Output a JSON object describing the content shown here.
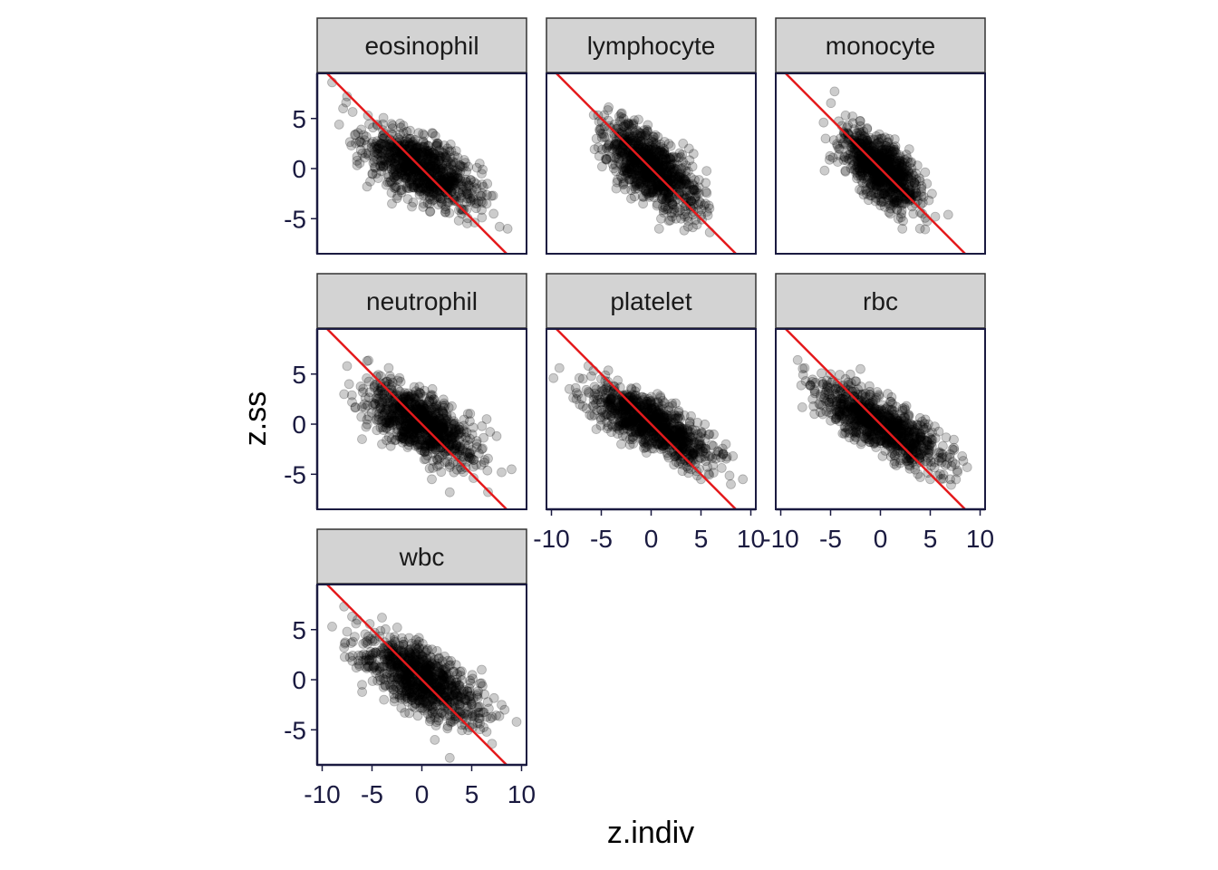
{
  "chart_data": {
    "type": "scatter",
    "layout": "facet_wrap",
    "xlabel": "z.indiv",
    "ylabel": "z.ss",
    "xlim": [
      -10.5,
      10.5
    ],
    "ylim": [
      -8.5,
      9.5
    ],
    "xticks": [
      -10,
      -5,
      0,
      5,
      10
    ],
    "xtick_labels": [
      "-10",
      "-5",
      "0",
      "5",
      "10"
    ],
    "yticks": [
      -5,
      0,
      5
    ],
    "ytick_labels": [
      "-5",
      "0",
      "5"
    ],
    "grid": false,
    "reference_line": {
      "intercept": 0,
      "slope": -1,
      "color": "#e41a1c"
    },
    "point_color": "#000000",
    "point_alpha": 0.2,
    "panels": [
      {
        "label": "eosinophil",
        "cluster": {
          "x_mean": 0,
          "y_mean": 0,
          "x_sd": 2.8,
          "y_sd": 2.0,
          "corr": -0.62
        },
        "points": [
          [
            -9.0,
            8.6
          ],
          [
            -7.5,
            7.2
          ],
          [
            -7.6,
            6.6
          ],
          [
            -7.9,
            6.0
          ],
          [
            -8.3,
            4.4
          ],
          [
            -6.5,
            1.2
          ],
          [
            -5.5,
            -1.8
          ],
          [
            -3.0,
            -3.5
          ],
          [
            -1.0,
            -3.8
          ],
          [
            2.0,
            -3.5
          ],
          [
            4.0,
            -4.5
          ],
          [
            5.0,
            -2.5
          ],
          [
            5.8,
            0.5
          ],
          [
            6.5,
            -3.5
          ],
          [
            7.2,
            -4.5
          ],
          [
            7.8,
            -5.8
          ],
          [
            8.6,
            -6.0
          ],
          [
            6.0,
            -0.5
          ]
        ]
      },
      {
        "label": "lymphocyte",
        "cluster": {
          "x_mean": 0,
          "y_mean": 0,
          "x_sd": 2.3,
          "y_sd": 2.2,
          "corr": -0.65
        },
        "points": [
          [
            -4.3,
            4.8
          ],
          [
            -3.2,
            5.2
          ],
          [
            -5.0,
            3.5
          ],
          [
            -3.5,
            -2.0
          ],
          [
            -2.0,
            -3.0
          ],
          [
            1.0,
            -5.0
          ],
          [
            0.8,
            -6.0
          ],
          [
            2.5,
            -5.0
          ],
          [
            4.0,
            -4.0
          ],
          [
            4.6,
            -5.6
          ],
          [
            3.0,
            -5.0
          ],
          [
            3.8,
            2.0
          ],
          [
            3.2,
            2.5
          ],
          [
            -4.5,
            2.0
          ]
        ]
      },
      {
        "label": "monocyte",
        "cluster": {
          "x_mean": 0,
          "y_mean": 0,
          "x_sd": 2.0,
          "y_sd": 2.1,
          "corr": -0.65
        },
        "points": [
          [
            -4.6,
            7.7
          ],
          [
            -5.7,
            4.6
          ],
          [
            -5.5,
            3.0
          ],
          [
            -5.6,
            -0.2
          ],
          [
            -3.5,
            5.3
          ],
          [
            -2.8,
            5.2
          ],
          [
            1.0,
            -4.5
          ],
          [
            1.8,
            -5.0
          ],
          [
            2.2,
            -6.0
          ],
          [
            3.3,
            -4.5
          ],
          [
            4.2,
            -4.5
          ],
          [
            5.5,
            -4.8
          ],
          [
            6.8,
            -4.6
          ],
          [
            3.5,
            -3.5
          ]
        ]
      },
      {
        "label": "neutrophil",
        "cluster": {
          "x_mean": 0,
          "y_mean": 0,
          "x_sd": 2.7,
          "y_sd": 2.0,
          "corr": -0.6
        },
        "points": [
          [
            -7.5,
            5.8
          ],
          [
            -5.5,
            6.3
          ],
          [
            -7.0,
            2.2
          ],
          [
            -7.8,
            3.0
          ],
          [
            -7.3,
            4.0
          ],
          [
            -6.0,
            -1.5
          ],
          [
            -4.0,
            -2.0
          ],
          [
            1.0,
            -5.5
          ],
          [
            2.8,
            -6.8
          ],
          [
            4.0,
            -4.5
          ],
          [
            6.0,
            -2.5
          ],
          [
            7.5,
            -1.2
          ],
          [
            8.0,
            -4.8
          ],
          [
            9.0,
            -4.5
          ],
          [
            6.5,
            0.5
          ],
          [
            -3.2,
            4.8
          ]
        ]
      },
      {
        "label": "platelet",
        "cluster": {
          "x_mean": 0,
          "y_mean": 0,
          "x_sd": 3.2,
          "y_sd": 2.0,
          "corr": -0.75
        },
        "points": [
          [
            -9.8,
            4.6
          ],
          [
            -9.2,
            5.6
          ],
          [
            -8.2,
            3.5
          ],
          [
            -7.2,
            4.6
          ],
          [
            -7.5,
            2.5
          ],
          [
            -6.0,
            4.8
          ],
          [
            -5.0,
            4.5
          ],
          [
            -5.5,
            -0.5
          ],
          [
            -3.0,
            -2.0
          ],
          [
            3.0,
            -3.5
          ],
          [
            4.0,
            -4.5
          ],
          [
            5.0,
            -5.5
          ],
          [
            7.5,
            -2.0
          ],
          [
            8.2,
            -3.2
          ],
          [
            8.0,
            -6.0
          ],
          [
            9.2,
            -5.5
          ],
          [
            4.0,
            0.8
          ]
        ]
      },
      {
        "label": "rbc",
        "cluster": {
          "x_mean": 0,
          "y_mean": 0,
          "x_sd": 3.2,
          "y_sd": 2.1,
          "corr": -0.78
        },
        "points": [
          [
            -8.3,
            6.4
          ],
          [
            -7.6,
            5.6
          ],
          [
            -5.0,
            5.0
          ],
          [
            -3.5,
            4.5
          ],
          [
            -2.0,
            5.5
          ],
          [
            -6.8,
            2.5
          ],
          [
            -4.5,
            0.5
          ],
          [
            5.0,
            -5.5
          ],
          [
            6.0,
            -5.0
          ],
          [
            7.0,
            -5.5
          ],
          [
            7.5,
            -4.0
          ],
          [
            8.2,
            -3.2
          ],
          [
            8.7,
            -4.3
          ],
          [
            4.5,
            -0.5
          ],
          [
            -6.0,
            3.0
          ]
        ]
      },
      {
        "label": "wbc",
        "cluster": {
          "x_mean": 0,
          "y_mean": 0,
          "x_sd": 3.0,
          "y_sd": 2.1,
          "corr": -0.65
        },
        "points": [
          [
            -9.0,
            5.3
          ],
          [
            -7.8,
            7.3
          ],
          [
            -7.0,
            6.3
          ],
          [
            -7.5,
            4.8
          ],
          [
            -5.5,
            2.0
          ],
          [
            -7.8,
            3.2
          ],
          [
            -4.0,
            6.2
          ],
          [
            -3.8,
            -2.0
          ],
          [
            -6.0,
            -0.5
          ],
          [
            1.3,
            -6.0
          ],
          [
            2.8,
            -7.8
          ],
          [
            4.0,
            -4.5
          ],
          [
            5.3,
            -3.5
          ],
          [
            6.5,
            -5.2
          ],
          [
            8.0,
            -2.5
          ],
          [
            9.5,
            -4.2
          ],
          [
            8.3,
            -3.0
          ],
          [
            6.0,
            1.0
          ]
        ]
      }
    ]
  }
}
